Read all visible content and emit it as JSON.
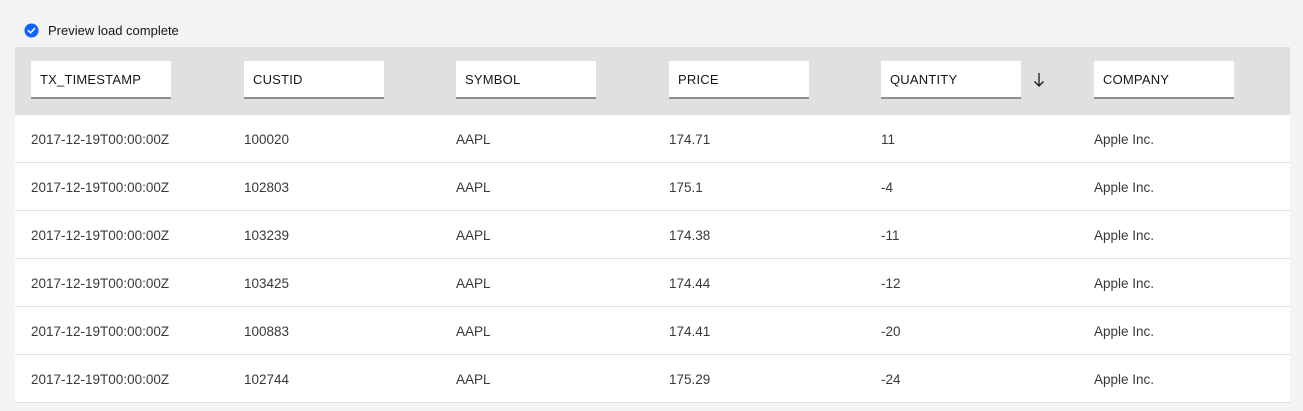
{
  "status": {
    "message": "Preview load complete",
    "icon": "checkmark-filled-icon",
    "color": "#0f62fe"
  },
  "table": {
    "columns": [
      {
        "key": "tx_timestamp",
        "label": "TX_TIMESTAMP"
      },
      {
        "key": "custid",
        "label": "CUSTID"
      },
      {
        "key": "symbol",
        "label": "SYMBOL"
      },
      {
        "key": "price",
        "label": "PRICE"
      },
      {
        "key": "quantity",
        "label": "QUANTITY",
        "sorted": "descending",
        "sort_icon": "arrow-down-icon"
      },
      {
        "key": "company",
        "label": "COMPANY"
      }
    ],
    "rows": [
      [
        "2017-12-19T00:00:00Z",
        "100020",
        "AAPL",
        "174.71",
        "11",
        "Apple Inc."
      ],
      [
        "2017-12-19T00:00:00Z",
        "102803",
        "AAPL",
        "175.1",
        "-4",
        "Apple Inc."
      ],
      [
        "2017-12-19T00:00:00Z",
        "103239",
        "AAPL",
        "174.38",
        "-11",
        "Apple Inc."
      ],
      [
        "2017-12-19T00:00:00Z",
        "103425",
        "AAPL",
        "174.44",
        "-12",
        "Apple Inc."
      ],
      [
        "2017-12-19T00:00:00Z",
        "100883",
        "AAPL",
        "174.41",
        "-20",
        "Apple Inc."
      ],
      [
        "2017-12-19T00:00:00Z",
        "102744",
        "AAPL",
        "175.29",
        "-24",
        "Apple Inc."
      ]
    ]
  }
}
